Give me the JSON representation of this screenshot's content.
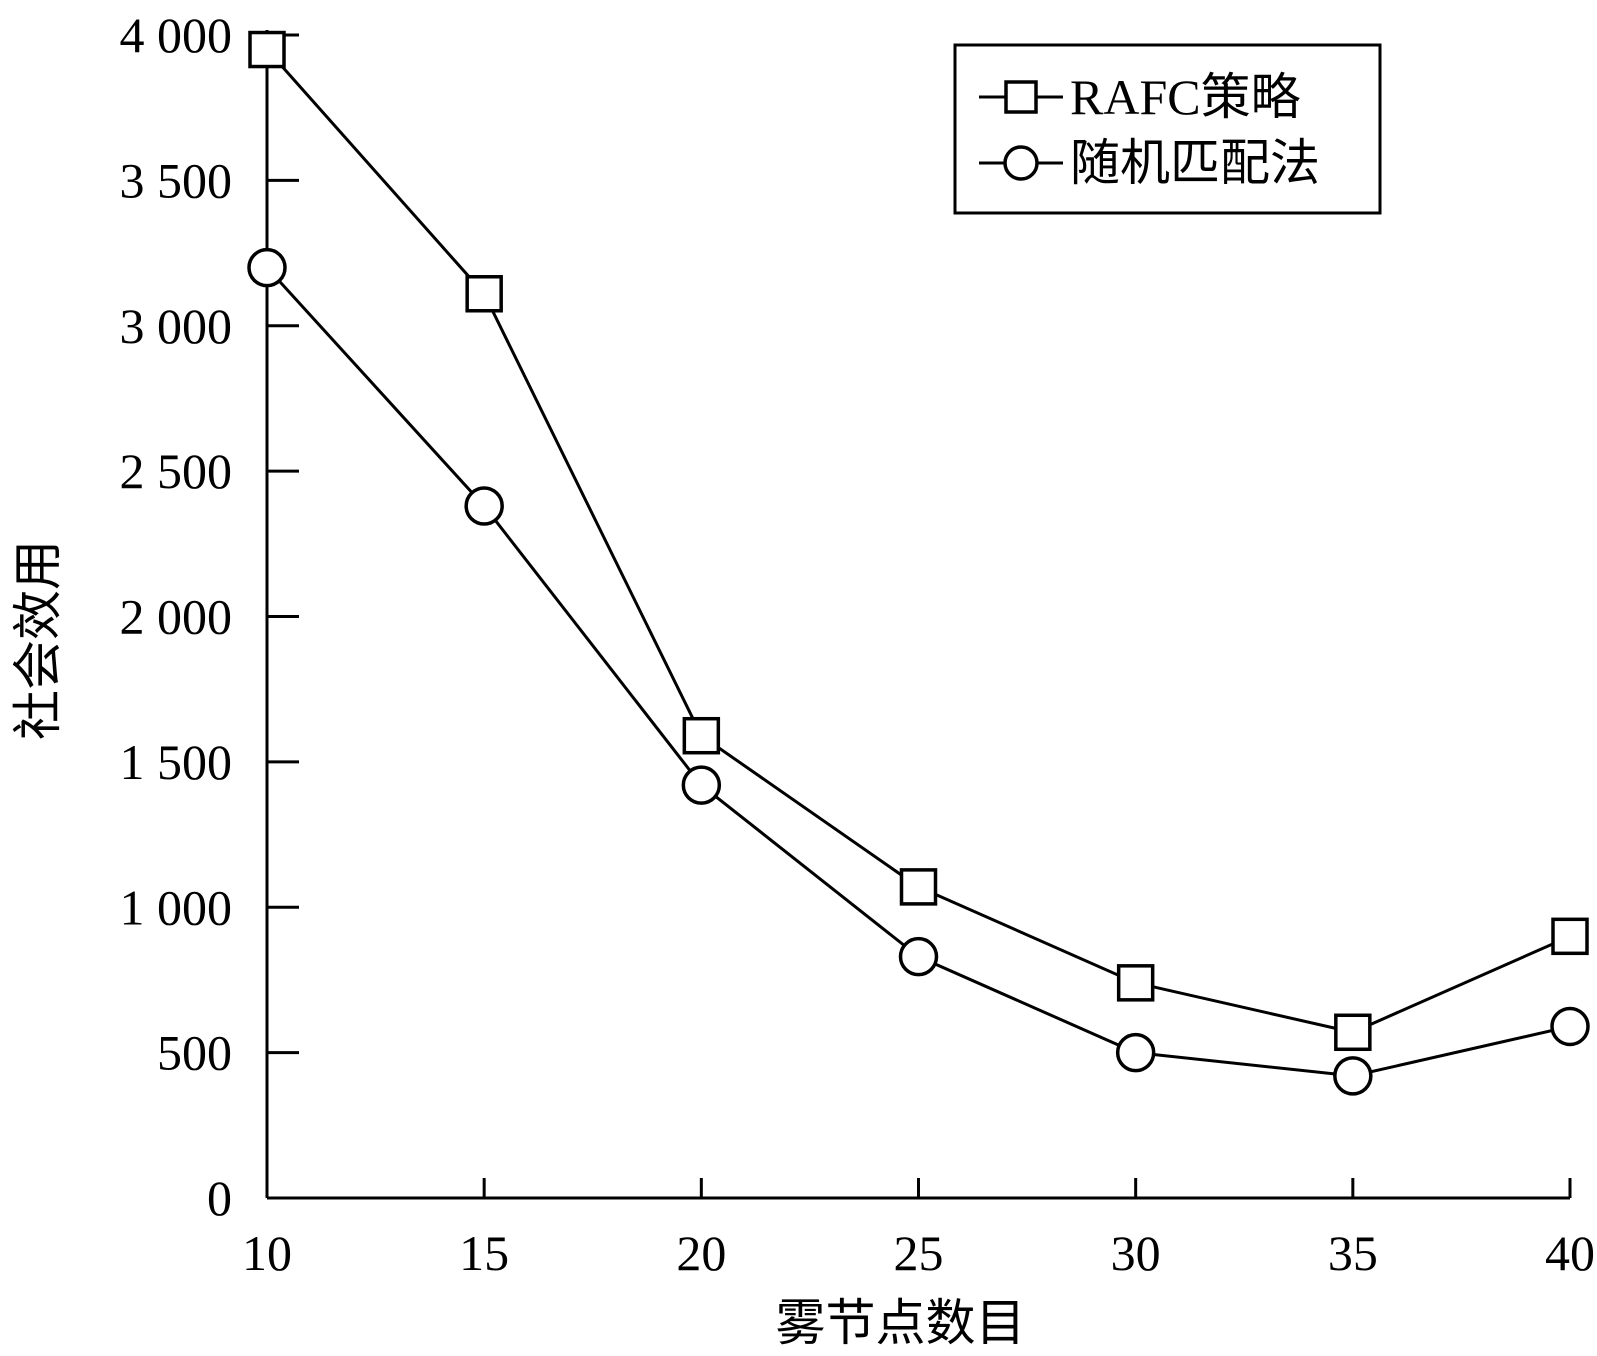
{
  "chart_data": {
    "type": "line",
    "x": [
      10,
      15,
      20,
      25,
      30,
      35,
      40
    ],
    "xticks": [
      10,
      15,
      20,
      25,
      30,
      35,
      40
    ],
    "xtick_labels": [
      "10",
      "15",
      "20",
      "25",
      "30",
      "35",
      "40"
    ],
    "xlim": [
      10,
      40
    ],
    "yticks": [
      0,
      500,
      1000,
      1500,
      2000,
      2500,
      3000,
      3500,
      4000
    ],
    "ytick_labels": [
      "0",
      "500",
      "1 000",
      "1 500",
      "2 000",
      "2 500",
      "3 000",
      "3 500",
      "4 000"
    ],
    "ylim": [
      0,
      4000
    ],
    "xlabel": "雾节点数目",
    "ylabel": "社会效用",
    "title": "",
    "grid": false,
    "legend_position": "top-right",
    "series": [
      {
        "name": "RAFC策略",
        "marker": "square",
        "values": [
          3950,
          3110,
          1590,
          1070,
          740,
          570,
          900
        ]
      },
      {
        "name": "随机匹配法",
        "marker": "circle",
        "values": [
          3200,
          2380,
          1420,
          830,
          500,
          420,
          590
        ]
      }
    ]
  }
}
